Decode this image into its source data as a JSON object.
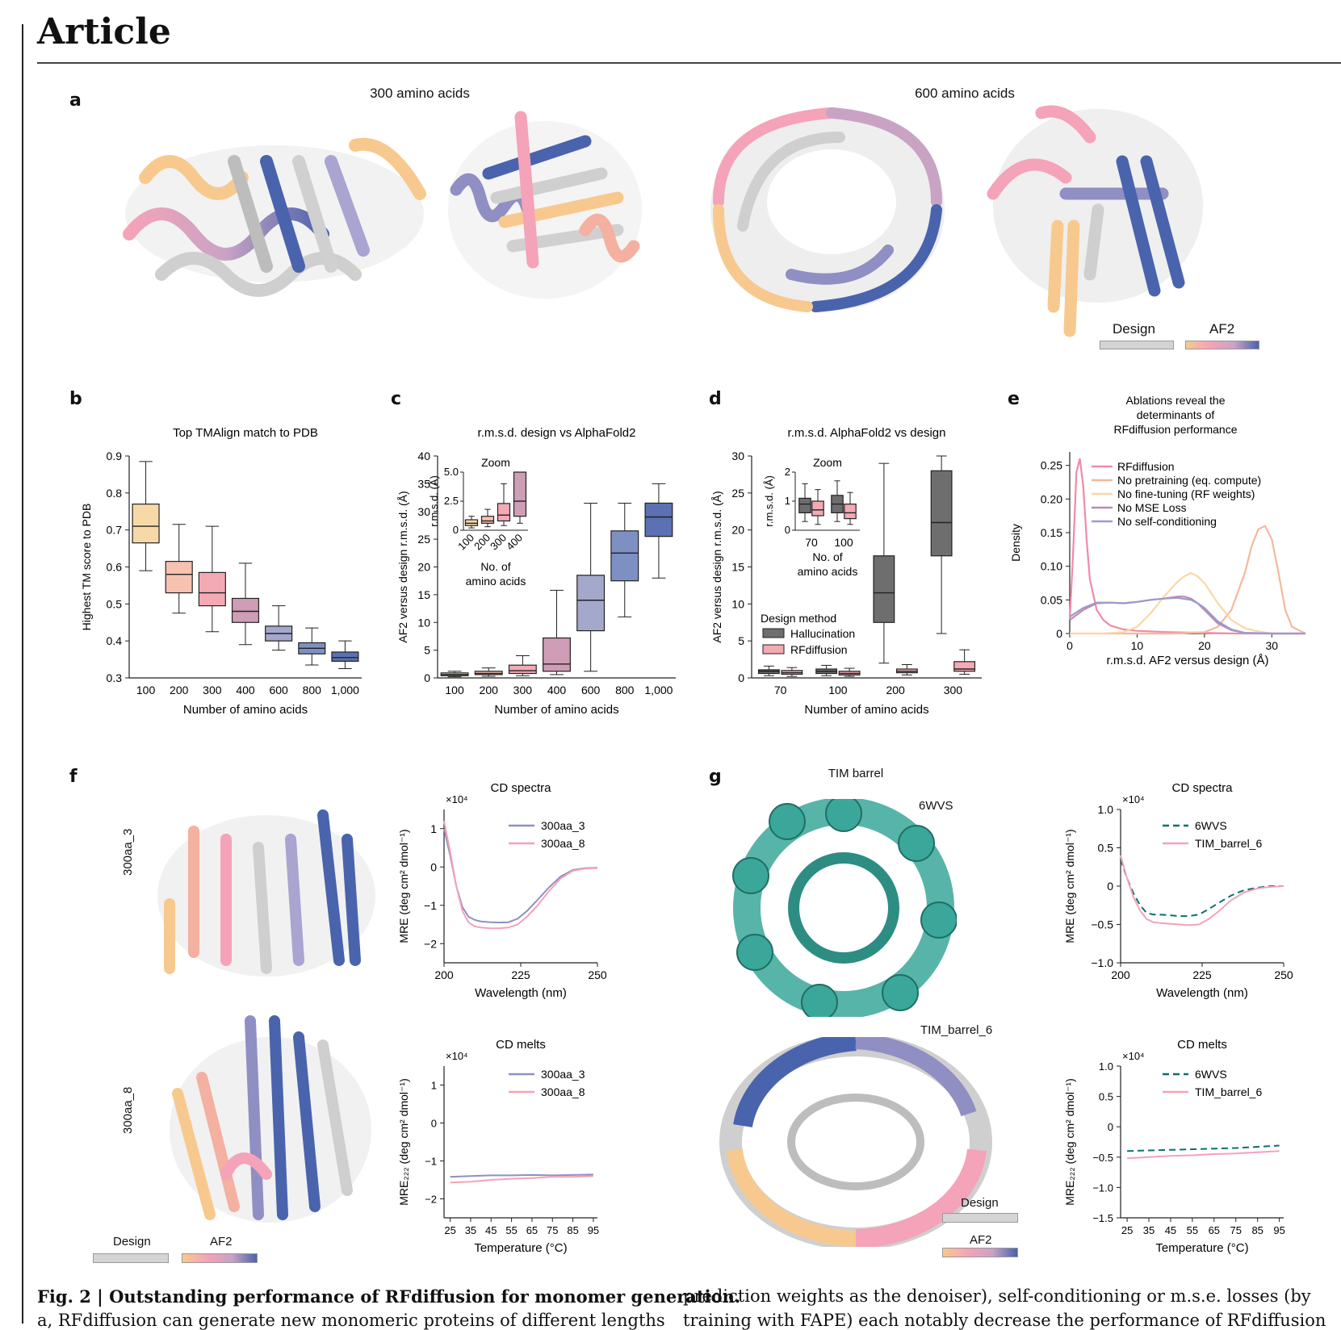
{
  "header": {
    "word": "Article"
  },
  "panels": {
    "a": {
      "letter": "a",
      "title_left": "300 amino acids",
      "title_right": "600 amino acids",
      "legend": {
        "design": "Design",
        "af2": "AF2"
      }
    },
    "b": {
      "letter": "b"
    },
    "c": {
      "letter": "c"
    },
    "d": {
      "letter": "d"
    },
    "e": {
      "letter": "e"
    },
    "f": {
      "letter": "f",
      "label_top": "300aa_3",
      "label_bottom": "300aa_8",
      "legend": {
        "design": "Design",
        "af2": "AF2"
      }
    },
    "g": {
      "letter": "g",
      "title_tim": "TIM barrel",
      "label_6wvs": "6WVS",
      "label_tim6": "TIM_barrel_6",
      "legend": {
        "design": "Design",
        "af2": "AF2"
      }
    }
  },
  "caption": {
    "left": "Fig. 2 | Outstanding performance of RFdiffusion for monomer generation.",
    "left_line2": "a, RFdiffusion can generate new monomeric proteins of different lengths",
    "right": "prediction weights as the denoiser), self-conditioning or m.s.e. losses (by",
    "right_line2": "training with FAPE) each notably decrease the performance of RFdiffusion"
  },
  "colors": {
    "design_gray": "#d4d4d4",
    "teal": "#3aa79a",
    "pink": "#f4a3b8",
    "blue": "#4a63ad",
    "peach": "#f8c98e",
    "dark_teal": "#0d6e6b",
    "lavender": "#8f8fc4"
  },
  "chart_data": [
    {
      "id": "b",
      "type": "box",
      "title": "Top TMAlign match to PDB",
      "xlabel": "Number of amino acids",
      "ylabel": "Highest TM score to PDB",
      "ylim": [
        0.3,
        0.9
      ],
      "yticks": [
        "0.3",
        "0.4",
        "0.5",
        "0.6",
        "0.7",
        "0.8",
        "0.9"
      ],
      "categories": [
        "100",
        "200",
        "300",
        "400",
        "600",
        "800",
        "1,000"
      ],
      "colors": [
        "#f7d9a8",
        "#f7c2b1",
        "#f3aab5",
        "#cf9db6",
        "#a4a8cb",
        "#7e90c3",
        "#5c71b3"
      ],
      "boxes": [
        {
          "wlo": 0.59,
          "q1": 0.665,
          "med": 0.71,
          "q3": 0.77,
          "whi": 0.885
        },
        {
          "wlo": 0.475,
          "q1": 0.53,
          "med": 0.58,
          "q3": 0.615,
          "whi": 0.715
        },
        {
          "wlo": 0.425,
          "q1": 0.495,
          "med": 0.53,
          "q3": 0.585,
          "whi": 0.71
        },
        {
          "wlo": 0.39,
          "q1": 0.45,
          "med": 0.48,
          "q3": 0.515,
          "whi": 0.61
        },
        {
          "wlo": 0.375,
          "q1": 0.4,
          "med": 0.42,
          "q3": 0.44,
          "whi": 0.495
        },
        {
          "wlo": 0.335,
          "q1": 0.365,
          "med": 0.38,
          "q3": 0.395,
          "whi": 0.435
        },
        {
          "wlo": 0.325,
          "q1": 0.345,
          "med": 0.355,
          "q3": 0.37,
          "whi": 0.4
        }
      ]
    },
    {
      "id": "c",
      "type": "box",
      "title": "r.m.s.d. design vs AlphaFold2",
      "xlabel": "Number of amino acids",
      "ylabel": "AF2 versus design r.m.s.d. (Å)",
      "ylim": [
        0,
        40
      ],
      "yticks": [
        "0",
        "5",
        "10",
        "15",
        "20",
        "25",
        "30",
        "35",
        "40"
      ],
      "categories": [
        "100",
        "200",
        "300",
        "400",
        "600",
        "800",
        "1,000"
      ],
      "colors": [
        "#f7d9a8",
        "#f7c2b1",
        "#f3aab5",
        "#cf9db6",
        "#a4a8cb",
        "#7e90c3",
        "#5c71b3"
      ],
      "boxes": [
        {
          "wlo": 0.2,
          "q1": 0.4,
          "med": 0.6,
          "q3": 0.9,
          "whi": 1.2
        },
        {
          "wlo": 0.3,
          "q1": 0.6,
          "med": 0.8,
          "q3": 1.2,
          "whi": 1.8
        },
        {
          "wlo": 0.4,
          "q1": 0.8,
          "med": 1.3,
          "q3": 2.3,
          "whi": 4.0
        },
        {
          "wlo": 0.6,
          "q1": 1.2,
          "med": 2.5,
          "q3": 7.2,
          "whi": 15.8
        },
        {
          "wlo": 1.2,
          "q1": 8.5,
          "med": 14.0,
          "q3": 18.5,
          "whi": 31.5
        },
        {
          "wlo": 11.0,
          "q1": 17.5,
          "med": 22.5,
          "q3": 26.5,
          "whi": 31.5
        },
        {
          "wlo": 18.0,
          "q1": 25.5,
          "med": 29.0,
          "q3": 31.5,
          "whi": 35.0
        }
      ],
      "inset": {
        "title": "Zoom",
        "ylabel": "r.m.s.d. (Å)",
        "xlabel": "No. of amino acids",
        "ylim": [
          0,
          5.0
        ],
        "yticks": [
          "0",
          "2.5",
          "5.0"
        ],
        "categories": [
          "100",
          "200",
          "300",
          "400"
        ]
      }
    },
    {
      "id": "d",
      "type": "box",
      "title": "r.m.s.d. AlphaFold2 vs design",
      "xlabel": "Number of amino acids",
      "ylabel": "AF2 versus design r.m.s.d. (Å)",
      "ylim": [
        0,
        30
      ],
      "yticks": [
        "0",
        "5",
        "10",
        "15",
        "20",
        "25",
        "30"
      ],
      "categories": [
        "70",
        "100",
        "200",
        "300"
      ],
      "legend_title": "Design method",
      "series": [
        {
          "name": "Hallucination",
          "color": "#6e6e6e",
          "boxes": [
            {
              "wlo": 0.3,
              "q1": 0.6,
              "med": 0.9,
              "q3": 1.1,
              "whi": 1.6
            },
            {
              "wlo": 0.3,
              "q1": 0.6,
              "med": 0.9,
              "q3": 1.2,
              "whi": 1.7
            },
            {
              "wlo": 2.0,
              "q1": 7.5,
              "med": 11.5,
              "q3": 16.5,
              "whi": 29.0
            },
            {
              "wlo": 6.0,
              "q1": 16.5,
              "med": 21.0,
              "q3": 28.0,
              "whi": 30.0
            }
          ]
        },
        {
          "name": "RFdiffusion",
          "color": "#f3aab5",
          "boxes": [
            {
              "wlo": 0.2,
              "q1": 0.5,
              "med": 0.7,
              "q3": 1.0,
              "whi": 1.4
            },
            {
              "wlo": 0.2,
              "q1": 0.4,
              "med": 0.6,
              "q3": 0.9,
              "whi": 1.3
            },
            {
              "wlo": 0.4,
              "q1": 0.7,
              "med": 0.9,
              "q3": 1.2,
              "whi": 1.8
            },
            {
              "wlo": 0.5,
              "q1": 0.9,
              "med": 1.2,
              "q3": 2.2,
              "whi": 3.8
            }
          ]
        }
      ],
      "inset": {
        "title": "Zoom",
        "ylabel": "r.m.s.d. (Å)",
        "xlabel": "No. of amino acids",
        "ylim": [
          0,
          2
        ],
        "yticks": [
          "0",
          "1",
          "2"
        ],
        "categories": [
          "70",
          "100"
        ]
      }
    },
    {
      "id": "e",
      "type": "line",
      "title": "Ablations reveal the determinants of RFdiffusion performance",
      "xlabel": "r.m.s.d. AF2 versus design (Å)",
      "ylabel": "Density",
      "xlim": [
        0,
        35
      ],
      "ylim": [
        0,
        0.27
      ],
      "xticks": [
        "0",
        "10",
        "20",
        "30"
      ],
      "yticks": [
        "0",
        "0.05",
        "0.10",
        "0.15",
        "0.20",
        "0.25"
      ],
      "series": [
        {
          "name": "RFdiffusion",
          "color": "#f08aa8",
          "x": [
            0,
            0.5,
            1,
            1.5,
            2,
            2.5,
            3,
            4,
            5,
            6,
            8,
            10,
            15,
            20,
            25,
            30,
            35
          ],
          "y": [
            0.02,
            0.12,
            0.24,
            0.26,
            0.22,
            0.14,
            0.08,
            0.035,
            0.02,
            0.012,
            0.006,
            0.004,
            0.002,
            0.001,
            0,
            0,
            0
          ]
        },
        {
          "name": "No pretraining (eq. compute)",
          "color": "#f5b89e",
          "x": [
            0,
            5,
            10,
            15,
            20,
            22,
            24,
            26,
            27,
            28,
            29,
            30,
            31,
            32,
            33,
            35
          ],
          "y": [
            0,
            0,
            0,
            0,
            0.002,
            0.01,
            0.035,
            0.09,
            0.13,
            0.155,
            0.16,
            0.14,
            0.09,
            0.035,
            0.01,
            0
          ]
        },
        {
          "name": "No fine-tuning (RF weights)",
          "color": "#fbd7a6",
          "x": [
            0,
            5,
            8,
            10,
            12,
            14,
            16,
            17,
            18,
            19,
            20,
            22,
            24,
            26,
            28,
            30,
            35
          ],
          "y": [
            0,
            0,
            0.002,
            0.01,
            0.03,
            0.055,
            0.077,
            0.085,
            0.09,
            0.085,
            0.075,
            0.045,
            0.02,
            0.008,
            0.003,
            0,
            0
          ]
        },
        {
          "name": "No MSE Loss",
          "color": "#c089b5",
          "x": [
            0,
            2,
            4,
            6,
            8,
            10,
            12,
            14,
            16,
            17,
            18,
            19,
            20,
            22,
            24,
            26,
            30,
            35
          ],
          "y": [
            0.02,
            0.035,
            0.045,
            0.046,
            0.045,
            0.047,
            0.05,
            0.052,
            0.055,
            0.055,
            0.052,
            0.045,
            0.035,
            0.015,
            0.005,
            0.001,
            0,
            0
          ]
        },
        {
          "name": "No self-conditioning",
          "color": "#9a9bcb",
          "x": [
            0,
            2,
            4,
            6,
            8,
            10,
            12,
            14,
            16,
            18,
            19,
            20,
            22,
            24,
            26,
            30,
            35
          ],
          "y": [
            0.025,
            0.038,
            0.046,
            0.046,
            0.045,
            0.047,
            0.05,
            0.052,
            0.053,
            0.05,
            0.045,
            0.038,
            0.018,
            0.006,
            0.001,
            0,
            0
          ]
        }
      ]
    },
    {
      "id": "f1",
      "type": "line",
      "title": "CD spectra",
      "xlabel": "Wavelength (nm)",
      "ylabel": "MRE (deg cm² dmol⁻¹)",
      "multiplier": "×10⁴",
      "xlim": [
        200,
        250
      ],
      "ylim": [
        -2.5,
        1.5
      ],
      "xticks": [
        "200",
        "225",
        "250"
      ],
      "yticks": [
        "1",
        "0",
        "−1",
        "−2"
      ],
      "series": [
        {
          "name": "300aa_3",
          "color": "#8f8fc4",
          "x": [
            200,
            202,
            204,
            206,
            208,
            210,
            212,
            215,
            218,
            221,
            224,
            227,
            230,
            234,
            238,
            242,
            246,
            250
          ],
          "y": [
            1.0,
            0.3,
            -0.5,
            -1.05,
            -1.3,
            -1.38,
            -1.42,
            -1.44,
            -1.45,
            -1.44,
            -1.35,
            -1.15,
            -0.9,
            -0.55,
            -0.25,
            -0.08,
            -0.03,
            -0.02
          ]
        },
        {
          "name": "300aa_8",
          "color": "#f4a3b8",
          "x": [
            200,
            202,
            204,
            206,
            208,
            210,
            212,
            215,
            218,
            221,
            224,
            227,
            230,
            234,
            238,
            242,
            246,
            250
          ],
          "y": [
            1.2,
            0.4,
            -0.5,
            -1.15,
            -1.45,
            -1.55,
            -1.58,
            -1.6,
            -1.6,
            -1.58,
            -1.5,
            -1.3,
            -1.05,
            -0.65,
            -0.3,
            -0.1,
            -0.04,
            -0.03
          ]
        }
      ]
    },
    {
      "id": "f2",
      "type": "line",
      "title": "CD melts",
      "xlabel": "Temperature (°C)",
      "ylabel": "MRE₂₂₂ (deg cm² dmol⁻¹)",
      "multiplier": "×10⁴",
      "xlim": [
        22,
        97
      ],
      "ylim": [
        -2.5,
        1.5
      ],
      "xticks": [
        "25",
        "35",
        "45",
        "55",
        "65",
        "75",
        "85",
        "95"
      ],
      "yticks": [
        "1",
        "0",
        "−1",
        "−2"
      ],
      "series": [
        {
          "name": "300aa_3",
          "color": "#8f8fc4",
          "x": [
            25,
            35,
            45,
            55,
            65,
            75,
            85,
            95
          ],
          "y": [
            -1.42,
            -1.4,
            -1.38,
            -1.38,
            -1.37,
            -1.38,
            -1.37,
            -1.36
          ]
        },
        {
          "name": "300aa_8",
          "color": "#f4a3b8",
          "x": [
            25,
            35,
            45,
            55,
            65,
            75,
            85,
            95
          ],
          "y": [
            -1.57,
            -1.55,
            -1.5,
            -1.47,
            -1.45,
            -1.42,
            -1.42,
            -1.4
          ]
        }
      ]
    },
    {
      "id": "g1",
      "type": "line",
      "title": "CD spectra",
      "xlabel": "Wavelength (nm)",
      "ylabel": "MRE (deg cm² dmol⁻¹)",
      "multiplier": "×10⁴",
      "xlim": [
        200,
        250
      ],
      "ylim": [
        -1.0,
        1.0
      ],
      "xticks": [
        "200",
        "225",
        "250"
      ],
      "yticks": [
        "1.0",
        "0.5",
        "0",
        "−0.5",
        "−1.0"
      ],
      "series": [
        {
          "name": "6WVS",
          "color": "#0d6e6b",
          "dashed": true,
          "x": [
            200,
            202,
            204,
            206,
            208,
            210,
            212,
            215,
            218,
            221,
            224,
            227,
            230,
            234,
            238,
            242,
            246,
            250
          ],
          "y": [
            0.35,
            0.1,
            -0.1,
            -0.25,
            -0.35,
            -0.37,
            -0.37,
            -0.38,
            -0.39,
            -0.39,
            -0.37,
            -0.3,
            -0.22,
            -0.12,
            -0.05,
            -0.02,
            0,
            0
          ]
        },
        {
          "name": "TIM_barrel_6",
          "color": "#f4a3b8",
          "x": [
            200,
            202,
            204,
            206,
            208,
            210,
            212,
            215,
            218,
            221,
            224,
            227,
            230,
            234,
            238,
            242,
            246,
            250
          ],
          "y": [
            0.4,
            0.1,
            -0.15,
            -0.32,
            -0.43,
            -0.47,
            -0.48,
            -0.49,
            -0.5,
            -0.51,
            -0.5,
            -0.43,
            -0.33,
            -0.18,
            -0.08,
            -0.03,
            -0.01,
            0
          ]
        }
      ]
    },
    {
      "id": "g2",
      "type": "line",
      "title": "CD melts",
      "xlabel": "Temperature (°C)",
      "ylabel": "MRE₂₂₂ (deg cm² dmol⁻¹)",
      "multiplier": "×10⁴",
      "xlim": [
        22,
        97
      ],
      "ylim": [
        -1.5,
        1.0
      ],
      "xticks": [
        "25",
        "35",
        "45",
        "55",
        "65",
        "75",
        "85",
        "95"
      ],
      "yticks": [
        "1.0",
        "0.5",
        "0",
        "−0.5",
        "−1.0",
        "−1.5"
      ],
      "series": [
        {
          "name": "6WVS",
          "color": "#0d6e6b",
          "dashed": true,
          "x": [
            25,
            35,
            45,
            55,
            65,
            75,
            85,
            95
          ],
          "y": [
            -0.4,
            -0.39,
            -0.38,
            -0.37,
            -0.36,
            -0.35,
            -0.33,
            -0.31
          ]
        },
        {
          "name": "TIM_barrel_6",
          "color": "#f4a3b8",
          "x": [
            25,
            35,
            45,
            55,
            65,
            75,
            85,
            95
          ],
          "y": [
            -0.52,
            -0.5,
            -0.48,
            -0.47,
            -0.45,
            -0.44,
            -0.42,
            -0.4
          ]
        }
      ]
    }
  ]
}
